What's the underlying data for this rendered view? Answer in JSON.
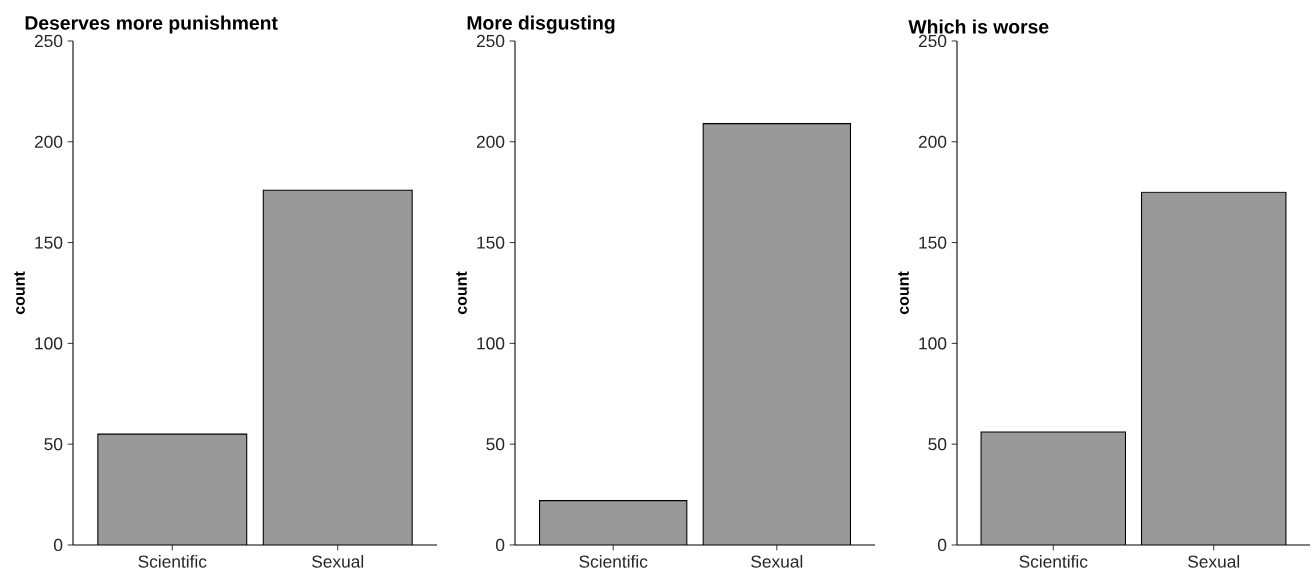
{
  "chart_data": [
    {
      "type": "bar",
      "title": "Deserves more punishment",
      "ylabel": "count",
      "categories": [
        "Scientific",
        "Sexual"
      ],
      "values": [
        55,
        176
      ],
      "color": "#999999",
      "ylim": [
        0,
        250
      ],
      "yticks": [
        0,
        50,
        100,
        150,
        200,
        250
      ]
    },
    {
      "type": "bar",
      "title": "More disgusting",
      "ylabel": "count",
      "categories": [
        "Scientific",
        "Sexual"
      ],
      "values": [
        22,
        209
      ],
      "color": "#999999",
      "ylim": [
        0,
        250
      ],
      "yticks": [
        0,
        50,
        100,
        150,
        200,
        250
      ]
    },
    {
      "type": "bar",
      "title": "Which is worse",
      "ylabel": "count",
      "categories": [
        "Scientific",
        "Sexual"
      ],
      "values": [
        56,
        175
      ],
      "color": "#999999",
      "ylim": [
        0,
        250
      ],
      "yticks": [
        0,
        50,
        100,
        150,
        200,
        250
      ]
    }
  ]
}
